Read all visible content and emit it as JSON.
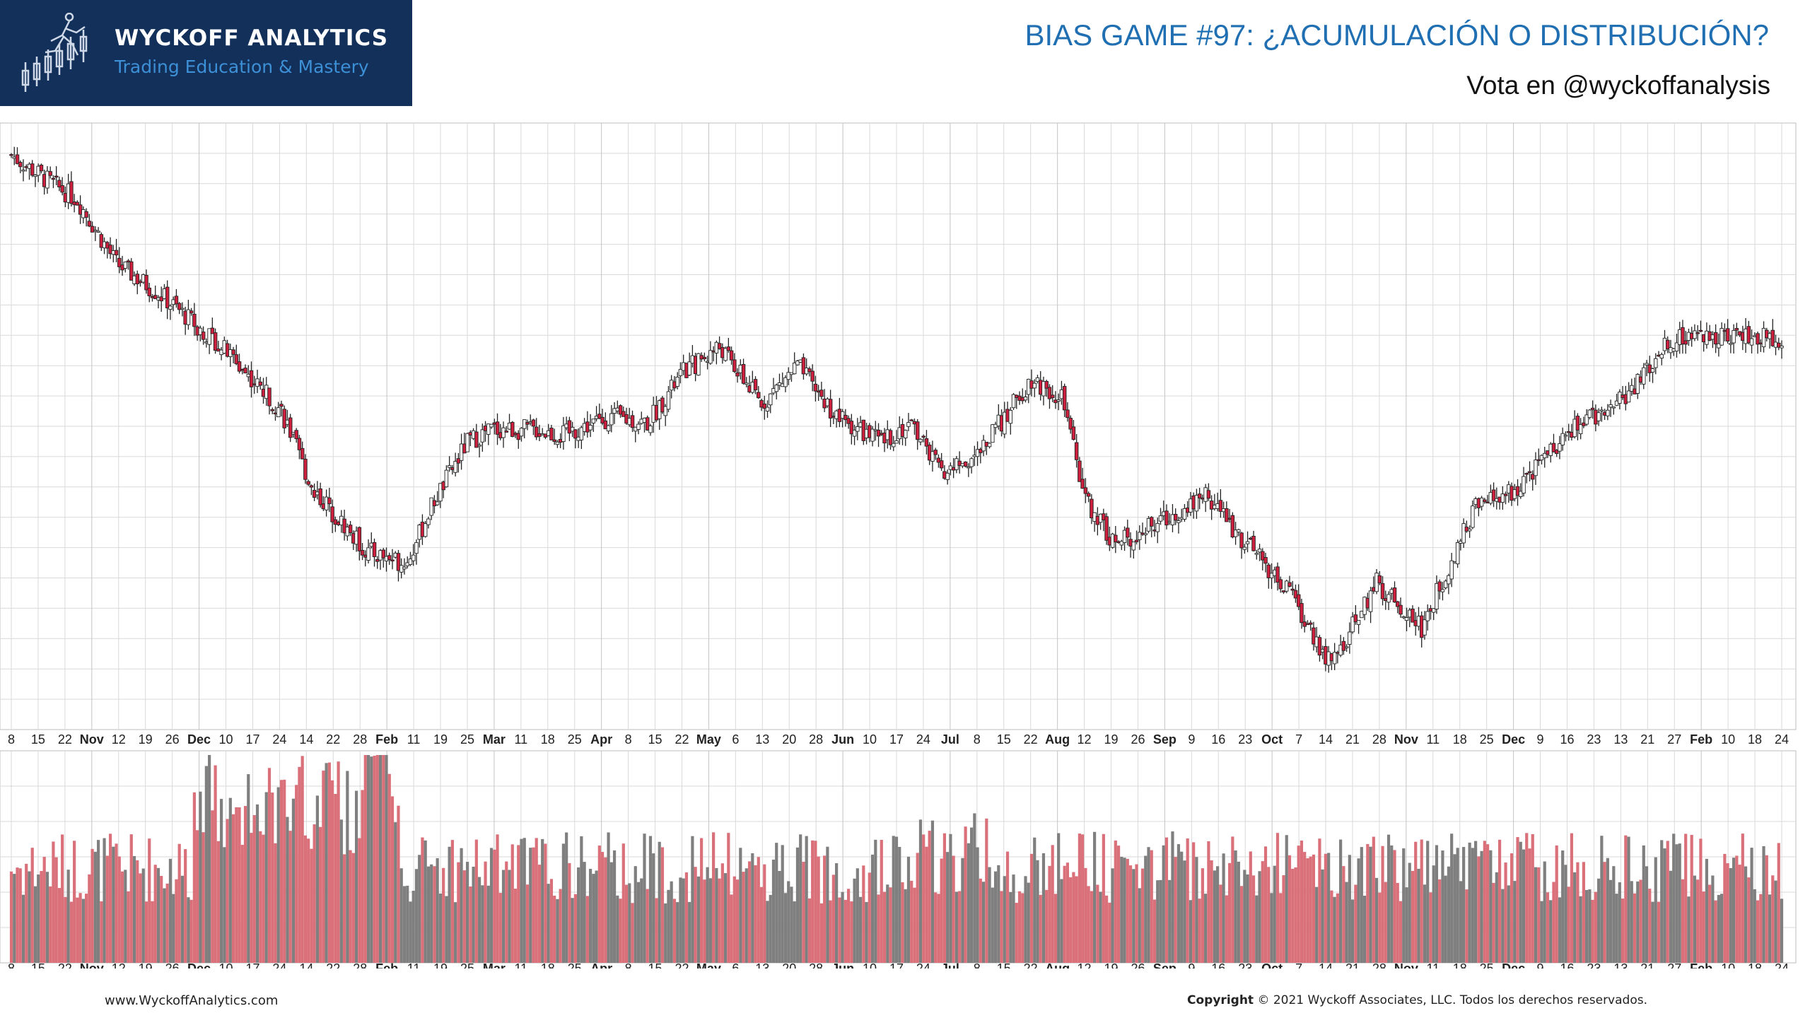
{
  "header": {
    "brand": "WYCKOFF ANALYTICS",
    "tagline": "Trading Education & Mastery",
    "title": "BIAS GAME #97: ¿ACUMULACIÓN O DISTRIBUCIÓN?",
    "subtitle": "Vota en @wyckoffanalysis"
  },
  "footer": {
    "website": "www.WyckoffAnalytics.com",
    "copyright_label": "Copyright",
    "copyright_text": "© 2021 Wyckoff Associates, LLC. Todos los derechos reservados."
  },
  "colors": {
    "logo_bg": "#12305a",
    "title_blue": "#1f6fb2",
    "tagline_blue": "#3d8fd6",
    "down_candle": "#cc1f3d",
    "up_candle": "#ffffff",
    "down_volume": "#d9707a",
    "up_volume": "#7f7f7f",
    "grid": "#d9d9d9"
  },
  "chart_data": {
    "type": "candlestick",
    "title": "",
    "xlabel": "",
    "ylabel": "",
    "grid": true,
    "x_tick_labels": [
      "8",
      "15",
      "22",
      "Nov",
      "12",
      "19",
      "26",
      "Dec",
      "10",
      "17",
      "24",
      "14",
      "22",
      "28",
      "Feb",
      "11",
      "19",
      "25",
      "Mar",
      "11",
      "18",
      "25",
      "Apr",
      "8",
      "15",
      "22",
      "May",
      "6",
      "13",
      "20",
      "28",
      "Jun",
      "10",
      "17",
      "24",
      "Jul",
      "8",
      "15",
      "22",
      "Aug",
      "12",
      "19",
      "26",
      "Sep",
      "9",
      "16",
      "23",
      "Oct",
      "7",
      "14",
      "21",
      "28",
      "Nov",
      "11",
      "18",
      "25",
      "Dec",
      "9",
      "16",
      "23",
      "13",
      "21",
      "27",
      "Feb",
      "10",
      "18",
      "24"
    ],
    "bold_tick_labels": [
      "Nov",
      "Dec",
      "Feb",
      "Mar",
      "Apr",
      "May",
      "Jun",
      "Jul",
      "Aug",
      "Sep",
      "Oct"
    ],
    "price_path_anchors": [
      [
        0,
        100
      ],
      [
        12,
        96
      ],
      [
        22,
        93
      ],
      [
        35,
        83
      ],
      [
        50,
        78
      ],
      [
        70,
        70
      ],
      [
        90,
        60
      ],
      [
        100,
        48
      ],
      [
        118,
        38
      ],
      [
        132,
        36
      ],
      [
        140,
        45
      ],
      [
        152,
        55
      ],
      [
        160,
        57
      ],
      [
        175,
        57
      ],
      [
        183,
        56
      ],
      [
        200,
        59
      ],
      [
        212,
        58
      ],
      [
        224,
        66
      ],
      [
        236,
        70
      ],
      [
        250,
        61
      ],
      [
        262,
        67
      ],
      [
        275,
        59
      ],
      [
        290,
        55
      ],
      [
        300,
        58
      ],
      [
        310,
        50
      ],
      [
        322,
        53
      ],
      [
        340,
        65
      ],
      [
        350,
        62
      ],
      [
        358,
        46
      ],
      [
        368,
        39
      ],
      [
        385,
        43
      ],
      [
        398,
        47
      ],
      [
        410,
        40
      ],
      [
        425,
        32
      ],
      [
        440,
        20
      ],
      [
        455,
        33
      ],
      [
        470,
        26
      ],
      [
        488,
        45
      ],
      [
        500,
        47
      ],
      [
        520,
        57
      ],
      [
        540,
        63
      ],
      [
        552,
        71
      ],
      [
        570,
        72
      ],
      [
        590,
        71
      ]
    ],
    "price_path_note": "",
    "volume_series": "relative"
  }
}
